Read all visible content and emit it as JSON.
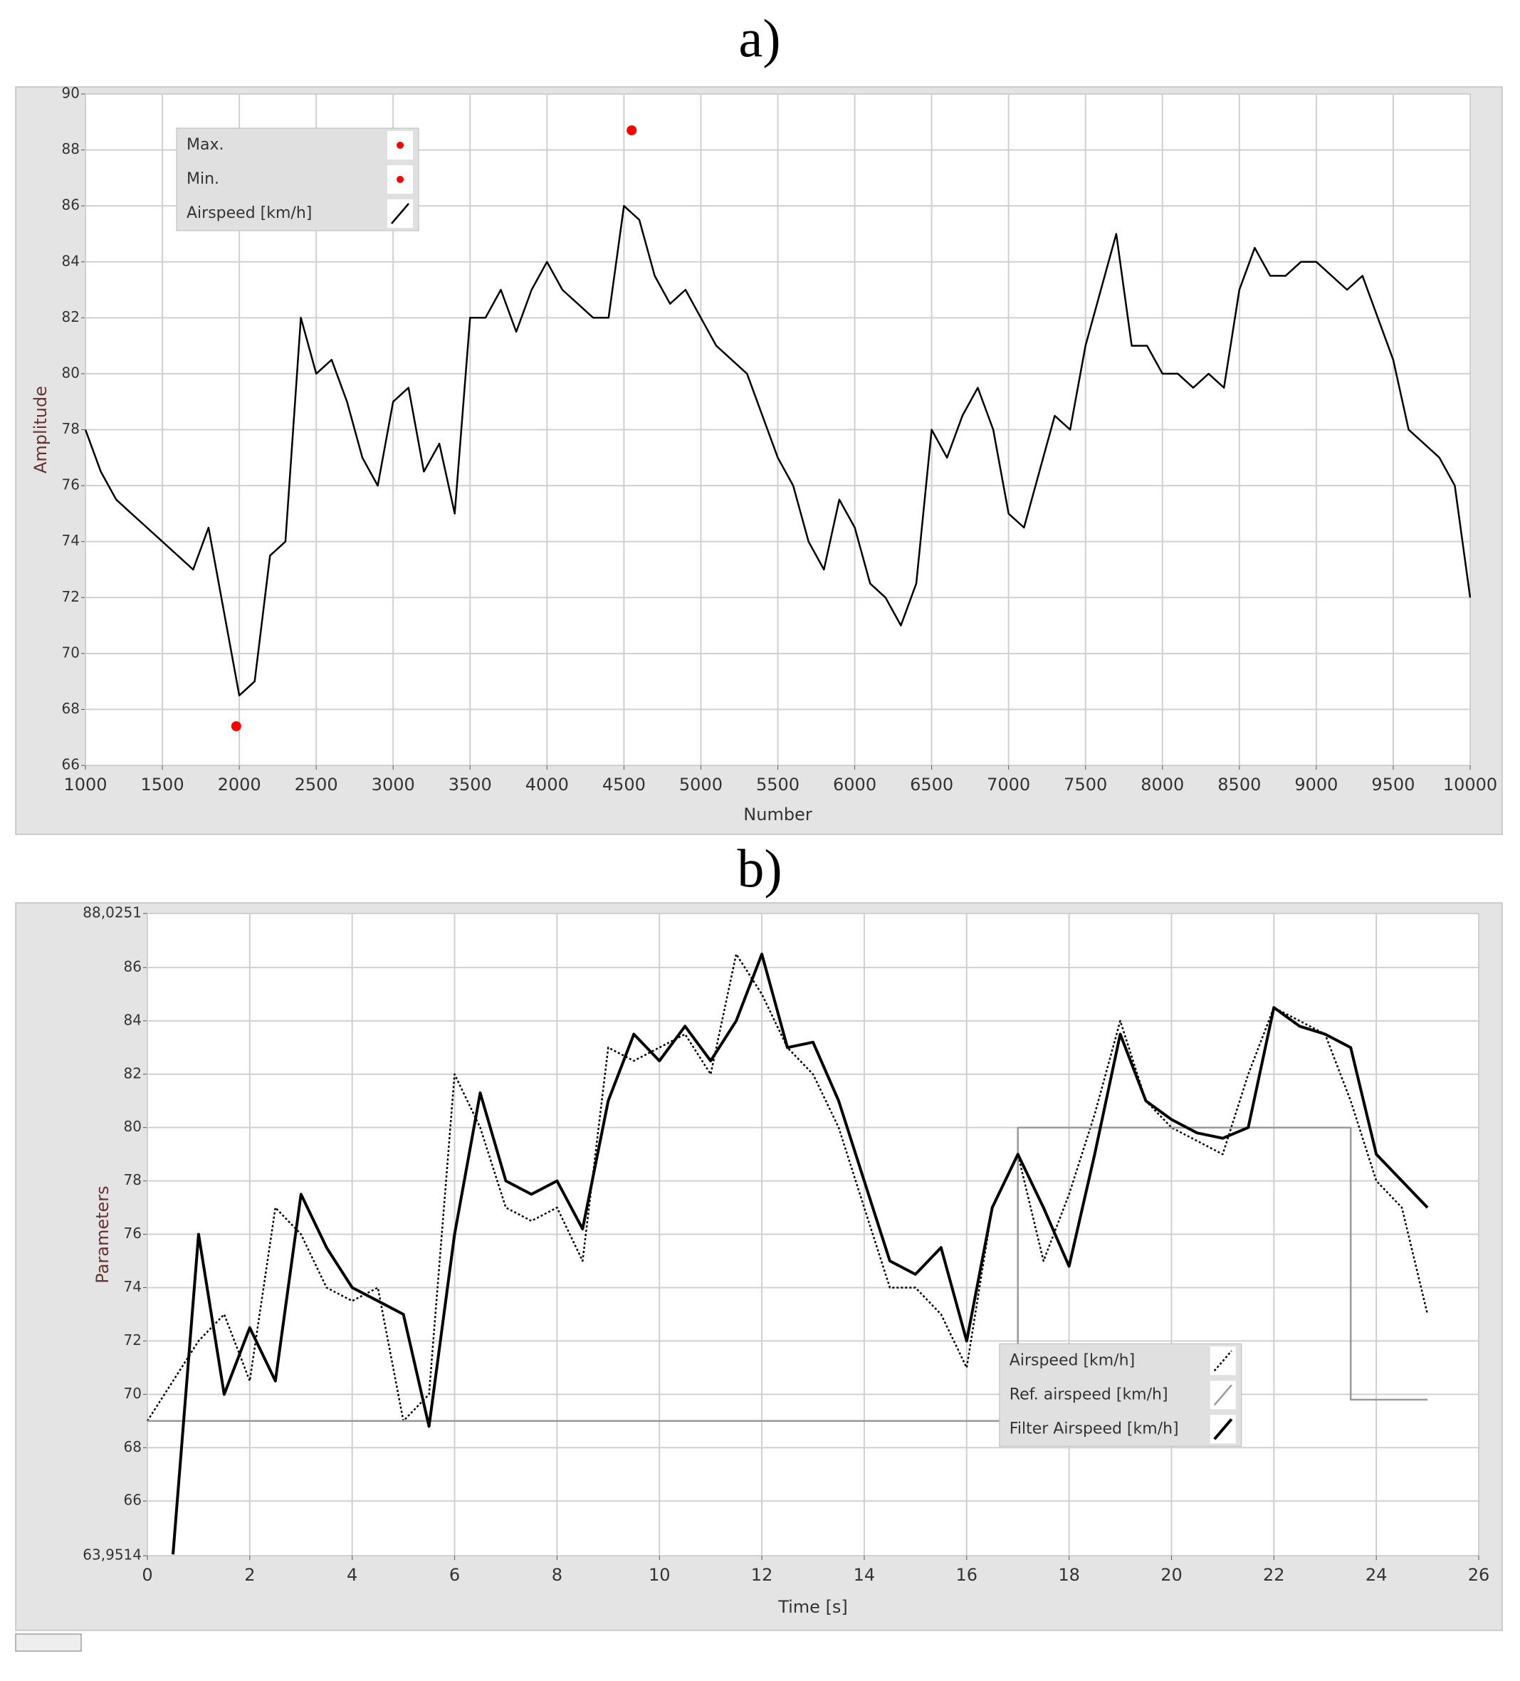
{
  "chart_data": [
    {
      "type": "line",
      "title": "a)",
      "xlabel": "Number",
      "ylabel": "Amplitude",
      "xlim": [
        1000,
        10000
      ],
      "ylim": [
        66,
        90
      ],
      "xticks": [
        1000,
        1500,
        2000,
        2500,
        3000,
        3500,
        4000,
        4500,
        5000,
        5500,
        6000,
        6500,
        7000,
        7500,
        8000,
        8500,
        9000,
        9500,
        10000
      ],
      "yticks": [
        66,
        68,
        70,
        72,
        74,
        76,
        78,
        80,
        82,
        84,
        86,
        88,
        90
      ],
      "grid": true,
      "legend": "upper left",
      "x": [
        1000,
        1100,
        1200,
        1300,
        1400,
        1500,
        1600,
        1700,
        1800,
        1900,
        2000,
        2100,
        2200,
        2300,
        2400,
        2500,
        2600,
        2700,
        2800,
        2900,
        3000,
        3100,
        3200,
        3300,
        3400,
        3500,
        3600,
        3700,
        3800,
        3900,
        4000,
        4100,
        4200,
        4300,
        4400,
        4500,
        4600,
        4700,
        4800,
        4900,
        5000,
        5100,
        5200,
        5300,
        5400,
        5500,
        5600,
        5700,
        5800,
        5900,
        6000,
        6100,
        6200,
        6300,
        6400,
        6500,
        6600,
        6700,
        6800,
        6900,
        7000,
        7100,
        7200,
        7300,
        7400,
        7500,
        7600,
        7700,
        7800,
        7900,
        8000,
        8100,
        8200,
        8300,
        8400,
        8500,
        8600,
        8700,
        8800,
        8900,
        9000,
        9100,
        9200,
        9300,
        9400,
        9500,
        9600,
        9700,
        9800,
        9900,
        10000
      ],
      "series": [
        {
          "name": "Max.",
          "color": "#ff0000",
          "marker": true,
          "x": [
            4550
          ],
          "values": [
            88.7
          ]
        },
        {
          "name": "Min.",
          "color": "#ff0000",
          "marker": true,
          "x": [
            1980
          ],
          "values": [
            67.4
          ]
        },
        {
          "name": "Airspeed [km/h]",
          "color": "#000000",
          "values": [
            78,
            76.5,
            75.5,
            75,
            74.5,
            74,
            73.5,
            73,
            74.5,
            71.5,
            68.5,
            69,
            73.5,
            74,
            82,
            80,
            80.5,
            79,
            77,
            76,
            79,
            79.5,
            76.5,
            77.5,
            75,
            82,
            82,
            83,
            81.5,
            83,
            84,
            83,
            82.5,
            82,
            82,
            86,
            85.5,
            83.5,
            82.5,
            83,
            82,
            81,
            80.5,
            80,
            78.5,
            77,
            76,
            74,
            73,
            75.5,
            74.5,
            72.5,
            72,
            71,
            72.5,
            78,
            77,
            78.5,
            79.5,
            78,
            75,
            74.5,
            76.5,
            78.5,
            78,
            81,
            83,
            85,
            81,
            81,
            80,
            80,
            79.5,
            80,
            79.5,
            83,
            84.5,
            83.5,
            83.5,
            84,
            84,
            83.5,
            83,
            83.5,
            82,
            80.5,
            78,
            77.5,
            77,
            76,
            72
          ]
        }
      ]
    },
    {
      "type": "line",
      "title": "b)",
      "xlabel": "Time [s]",
      "ylabel": "Parameters",
      "xlim": [
        0,
        26
      ],
      "ylim": [
        63.9514,
        88.0251
      ],
      "xticks": [
        0,
        2,
        4,
        6,
        8,
        10,
        12,
        14,
        16,
        18,
        20,
        22,
        24,
        26
      ],
      "yticks": [
        {
          "value": 63.9514,
          "label": "63,9514"
        },
        66,
        68,
        70,
        72,
        74,
        76,
        78,
        80,
        82,
        84,
        86,
        {
          "value": 88.0251,
          "label": "88,0251"
        }
      ],
      "grid": true,
      "legend": "lower right",
      "x": [
        0,
        0.5,
        1,
        1.5,
        2,
        2.5,
        3,
        3.5,
        4,
        4.5,
        5,
        5.5,
        6,
        6.5,
        7,
        7.5,
        8,
        8.5,
        9,
        9.5,
        10,
        10.5,
        11,
        11.5,
        12,
        12.5,
        13,
        13.5,
        14,
        14.5,
        15,
        15.5,
        16,
        16.5,
        17,
        17.5,
        18,
        18.5,
        19,
        19.5,
        20,
        20.5,
        21,
        21.5,
        22,
        22.5,
        23,
        23.5,
        24,
        24.5,
        25
      ],
      "series": [
        {
          "name": "Airspeed [km/h]",
          "color": "#000000",
          "dash": "dotted",
          "values": [
            69,
            70.5,
            72,
            73,
            70.5,
            77,
            76,
            74,
            73.5,
            74,
            69,
            70,
            82,
            80,
            77,
            76.5,
            77,
            75,
            83,
            82.5,
            83,
            83.5,
            82,
            86.5,
            85,
            83,
            82,
            80,
            77,
            74,
            74,
            73,
            71,
            77,
            79,
            75,
            77.5,
            80.5,
            84,
            81,
            80,
            79.5,
            79,
            82,
            84.5,
            84,
            83.5,
            81,
            78,
            77,
            73
          ]
        },
        {
          "name": "Ref. airspeed [km/h]",
          "color": "#999999",
          "x": [
            0,
            17,
            17,
            23.5,
            23.5,
            25
          ],
          "values": [
            69,
            69,
            80,
            80,
            69.8,
            69.8
          ]
        },
        {
          "name": "Filter Airspeed [km/h]",
          "color": "#000000",
          "width": 4,
          "values": [
            null,
            64,
            76,
            70,
            72.5,
            70.5,
            77.5,
            75.5,
            74,
            73.5,
            73,
            68.8,
            76,
            81.3,
            78,
            77.5,
            78,
            76.2,
            81,
            83.5,
            82.5,
            83.8,
            82.5,
            84,
            86.5,
            83,
            83.2,
            81,
            78,
            75,
            74.5,
            75.5,
            72,
            77,
            79,
            77,
            74.8,
            79,
            83.5,
            81,
            80.3,
            79.8,
            79.6,
            80,
            84.5,
            83.8,
            83.5,
            83,
            79,
            78,
            77
          ]
        }
      ]
    }
  ]
}
